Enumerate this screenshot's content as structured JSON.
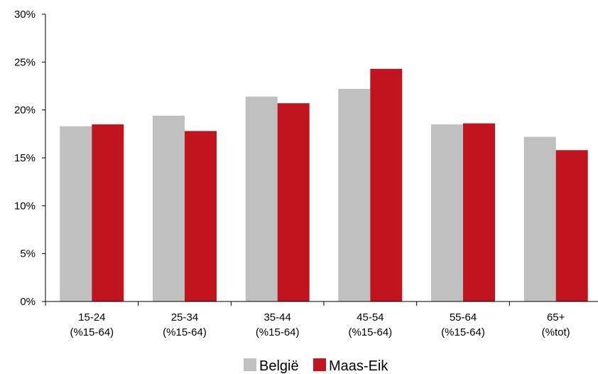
{
  "chart_data": {
    "type": "bar",
    "categories": [
      [
        "15-24",
        "(%15-64)"
      ],
      [
        "25-34",
        "(%15-64)"
      ],
      [
        "35-44",
        "(%15-64)"
      ],
      [
        "45-54",
        "(%15-64)"
      ],
      [
        "55-64",
        "(%15-64)"
      ],
      [
        "65+",
        "(%tot)"
      ]
    ],
    "series": [
      {
        "name": "België",
        "color": "#c0c0c0",
        "values": [
          18.3,
          19.4,
          21.4,
          22.2,
          18.5,
          17.2
        ]
      },
      {
        "name": "Maas-Eik",
        "color": "#c0141e",
        "values": [
          18.5,
          17.8,
          20.7,
          24.3,
          18.6,
          15.8
        ]
      }
    ],
    "ylim": [
      0,
      30
    ],
    "yticks": [
      0,
      5,
      10,
      15,
      20,
      25,
      30
    ],
    "ytick_labels": [
      "0%",
      "5%",
      "10%",
      "15%",
      "20%",
      "25%",
      "30%"
    ],
    "title": "",
    "xlabel": "",
    "ylabel": "",
    "grid": false,
    "legend": "bottom-center"
  }
}
